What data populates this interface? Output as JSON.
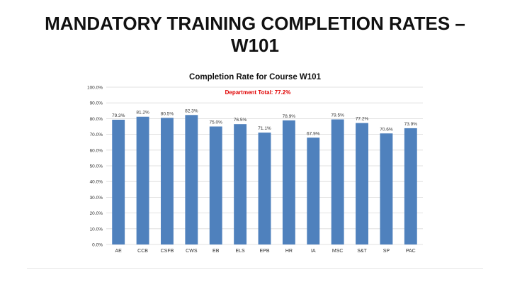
{
  "slide": {
    "title_line1": "MANDATORY TRAINING COMPLETION RATES –",
    "title_line2": "W101"
  },
  "chart_data": {
    "type": "bar",
    "title": "Completion Rate for Course W101",
    "annotation": "Department Total: 77.2%",
    "categories": [
      "AE",
      "CCB",
      "CSFB",
      "CWS",
      "EB",
      "ELS",
      "EPB",
      "HR",
      "IA",
      "MSC",
      "S&T",
      "SP",
      "PAC"
    ],
    "values": [
      79.3,
      81.2,
      80.5,
      82.3,
      75.0,
      76.5,
      71.1,
      78.9,
      67.9,
      79.5,
      77.2,
      70.6,
      73.9
    ],
    "data_labels": [
      "79.3%",
      "81.2%",
      "80.5%",
      "82.3%",
      "75.0%",
      "76.5%",
      "71.1%",
      "78.9%",
      "67.9%",
      "79.5%",
      "77.2%",
      "70.6%",
      "73.9%"
    ],
    "y_ticks": [
      "0.0%",
      "10.0%",
      "20.0%",
      "30.0%",
      "40.0%",
      "50.0%",
      "60.0%",
      "70.0%",
      "80.0%",
      "90.0%",
      "100.0%"
    ],
    "ylim": [
      0,
      100
    ],
    "grid": true,
    "colors": {
      "bar": "#4f81bd",
      "annotation": "#e00000",
      "grid": "#d9d9d9",
      "text": "#333333"
    }
  }
}
